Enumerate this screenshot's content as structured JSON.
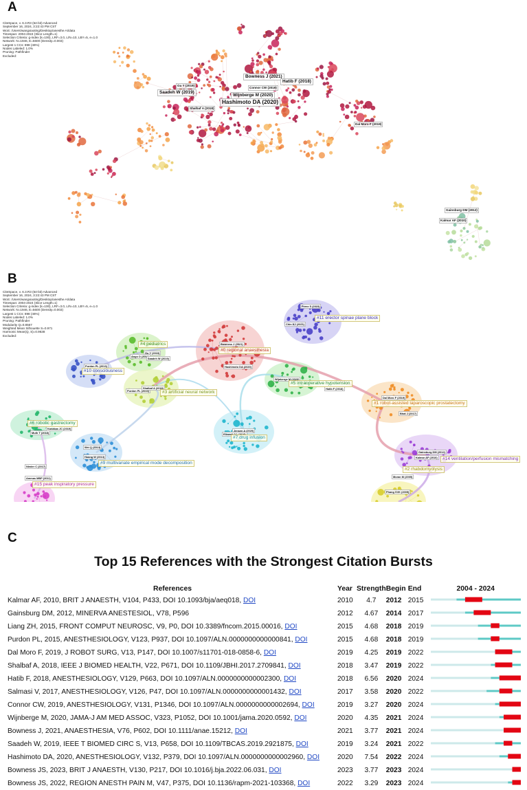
{
  "panels": {
    "a": {
      "letter": "A"
    },
    "b": {
      "letter": "B"
    },
    "c": {
      "letter": "C"
    }
  },
  "panel_a": {
    "meta_lines": [
      "CiteSpace, v. 6.3.R3 (64-bit) Advanced",
      "September 16, 2024, 3:22:43 PM CST",
      "WoS: /Users/wangxiaoting/Desktop/anesthe AI/data",
      "Timespan: 2004-2024 (Slice Length=1)",
      "Selection Criteria: g-index (k=100), LRF=3.0, L/N=10, LBY=5, e=1.0",
      "Network: N=1946, E=5600 (Density=0.003)",
      "Largest 1 CCs: 898 (46%)",
      "Nodes Labeled: 1.0%",
      "Pruning: Pathfinder",
      "Excluded:"
    ],
    "labels": [
      "Bowness J (2021)",
      "Hatib F (2018)",
      "Gu Y (2019)",
      "Connor CW (2019)",
      "Saadeh W (2019)",
      "Wijnberge M (2020)",
      "Hashimoto DA (2020)",
      "Shalbaf A (2018)",
      "Dal Moro F (2019)",
      "Gainsburg DM (2012)",
      "Kalmar AF (2010)"
    ]
  },
  "panel_b": {
    "meta_lines": [
      "CiteSpace, v. 6.3.R3 (64-bit) Advanced",
      "September 16, 2024, 3:22:43 PM CST",
      "WoS: /Users/wangxiaoting/Desktop/anesthe AI/data",
      "Timespan: 2004-2024 (Slice Length=1)",
      "Selection Criteria: g-index (k=100), LRF=3.0, L/N=10, LBY=5, e=1.0",
      "Network: N=1946, E=5600 (Density=0.003)",
      "Largest 1 CCs: 898 (46%)",
      "Nodes Labeled: 1.0%",
      "Pruning: Pathfinder",
      "Modularity Q=0.8567",
      "Weighted Mean Silhouette S=0.971",
      "Harmonic Mean(Q, S)=0.9638",
      "Excluded:"
    ],
    "clusters": [
      "#11 erector spinae plane block",
      "#0 regional anaesthesia",
      "#4 pediatrics",
      "#10 consciousness",
      "#3 artificial neural network",
      "#5 intraoperative hypotension",
      "#1 robot-assisted laparoscopic prostatectomy",
      "#6 robotic gastrectomy",
      "#7 drug infusion",
      "#9 multivariate empirical mode decomposition",
      "#14 ventilation/perfusion mismatching",
      "#15 peak inspiratory pressure",
      "#2 rhabdomyolysis"
    ],
    "node_labels": [
      "Perez S (2023)",
      "Chin KJ (2021)",
      "Bowness J (2021)",
      "Hashimoto DA (2020)",
      "Gu Y (2019)",
      "Angs O (2018)",
      "Saadeh W (2019)",
      "Purdon PL (2013)",
      "Purdon PL (2015)",
      "Shalbaf A (2018)",
      "Wijnberge M (2020)",
      "Hatib F (2018)",
      "Dal Moro F (2019)",
      "Bhat J (2017)",
      "Kanakas JC (2019)",
      "Muth T (2018)",
      "Jensen A (2020)",
      "Ellewell DJ (2018)",
      "Wei Q (2013)",
      "Huang W (2013)",
      "Gainsburg DM (2012)",
      "Kalmar AF (2010)",
      "Nieder C (2017)",
      "Ammas MBP (2011)",
      "Moran M (2005)",
      "Phang SVK (2005)"
    ]
  },
  "chart_data": {
    "type": "table",
    "title": "Top 15 References with the Strongest Citation Bursts",
    "headers": {
      "references": "References",
      "year": "Year",
      "strength": "Strength",
      "begin": "Begin",
      "end": "End",
      "range": "2004 - 2024"
    },
    "timeline": {
      "start": 2004,
      "end": 2024
    },
    "colors": {
      "baseline": "#5ec9c6",
      "pre_publication": "#cde9ea",
      "burst": "#e30613"
    },
    "link_text": "DOI",
    "rows": [
      {
        "ref": "Kalmar AF, 2010, BRIT J ANAESTH, V104, P433, DOI 10.1093/bja/aeq018,",
        "doi": true,
        "year": 2010,
        "strength": "4.7",
        "begin": 2012,
        "end": 2015
      },
      {
        "ref": "Gainsburg DM, 2012, MINERVA ANESTESIOL, V78, P596",
        "doi": false,
        "year": 2012,
        "strength": "4.67",
        "begin": 2014,
        "end": 2017
      },
      {
        "ref": "Liang ZH, 2015, FRONT COMPUT NEUROSC, V9, P0, DOI 10.3389/fncom.2015.00016,",
        "doi": true,
        "year": 2015,
        "strength": "4.68",
        "begin": 2018,
        "end": 2019
      },
      {
        "ref": "Purdon PL, 2015, ANESTHESIOLOGY, V123, P937, DOI 10.1097/ALN.0000000000000841,",
        "doi": true,
        "year": 2015,
        "strength": "4.68",
        "begin": 2018,
        "end": 2019
      },
      {
        "ref": "Dal Moro F, 2019, J ROBOT SURG, V13, P147, DOI 10.1007/s11701-018-0858-6,",
        "doi": true,
        "year": 2019,
        "strength": "4.25",
        "begin": 2019,
        "end": 2022
      },
      {
        "ref": "Shalbaf A, 2018, IEEE J BIOMED HEALTH, V22, P671, DOI 10.1109/JBHI.2017.2709841,",
        "doi": true,
        "year": 2018,
        "strength": "3.47",
        "begin": 2019,
        "end": 2022
      },
      {
        "ref": "Hatib F, 2018, ANESTHESIOLOGY, V129, P663, DOI 10.1097/ALN.0000000000002300,",
        "doi": true,
        "year": 2018,
        "strength": "6.56",
        "begin": 2020,
        "end": 2024
      },
      {
        "ref": "Salmasi V, 2017, ANESTHESIOLOGY, V126, P47, DOI 10.1097/ALN.0000000000001432,",
        "doi": true,
        "year": 2017,
        "strength": "3.58",
        "begin": 2020,
        "end": 2022
      },
      {
        "ref": "Connor CW, 2019, ANESTHESIOLOGY, V131, P1346, DOI 10.1097/ALN.0000000000002694,",
        "doi": true,
        "year": 2019,
        "strength": "3.27",
        "begin": 2020,
        "end": 2024
      },
      {
        "ref": "Wijnberge M, 2020, JAMA-J AM MED ASSOC, V323, P1052, DOI 10.1001/jama.2020.0592,",
        "doi": true,
        "year": 2020,
        "strength": "4.35",
        "begin": 2021,
        "end": 2024
      },
      {
        "ref": "Bowness J, 2021, ANAESTHESIA, V76, P602, DOI 10.1111/anae.15212,",
        "doi": true,
        "year": 2021,
        "strength": "3.77",
        "begin": 2021,
        "end": 2024
      },
      {
        "ref": "Saadeh W, 2019, IEEE T BIOMED CIRC S, V13, P658, DOI 10.1109/TBCAS.2019.2921875,",
        "doi": true,
        "year": 2019,
        "strength": "3.24",
        "begin": 2021,
        "end": 2022
      },
      {
        "ref": "Hashimoto DA, 2020, ANESTHESIOLOGY, V132, P379, DOI 10.1097/ALN.0000000000002960,",
        "doi": true,
        "year": 2020,
        "strength": "7.54",
        "begin": 2022,
        "end": 2024
      },
      {
        "ref": "Bowness JS, 2023, BRIT J ANAESTH, V130, P217, DOI 10.1016/j.bja.2022.06.031,",
        "doi": true,
        "year": 2023,
        "strength": "3.77",
        "begin": 2023,
        "end": 2024
      },
      {
        "ref": "Bowness JS, 2022, REGION ANESTH PAIN M, V47, P375, DOI 10.1136/rapm-2021-103368,",
        "doi": true,
        "year": 2022,
        "strength": "3.29",
        "begin": 2023,
        "end": 2024
      }
    ]
  }
}
